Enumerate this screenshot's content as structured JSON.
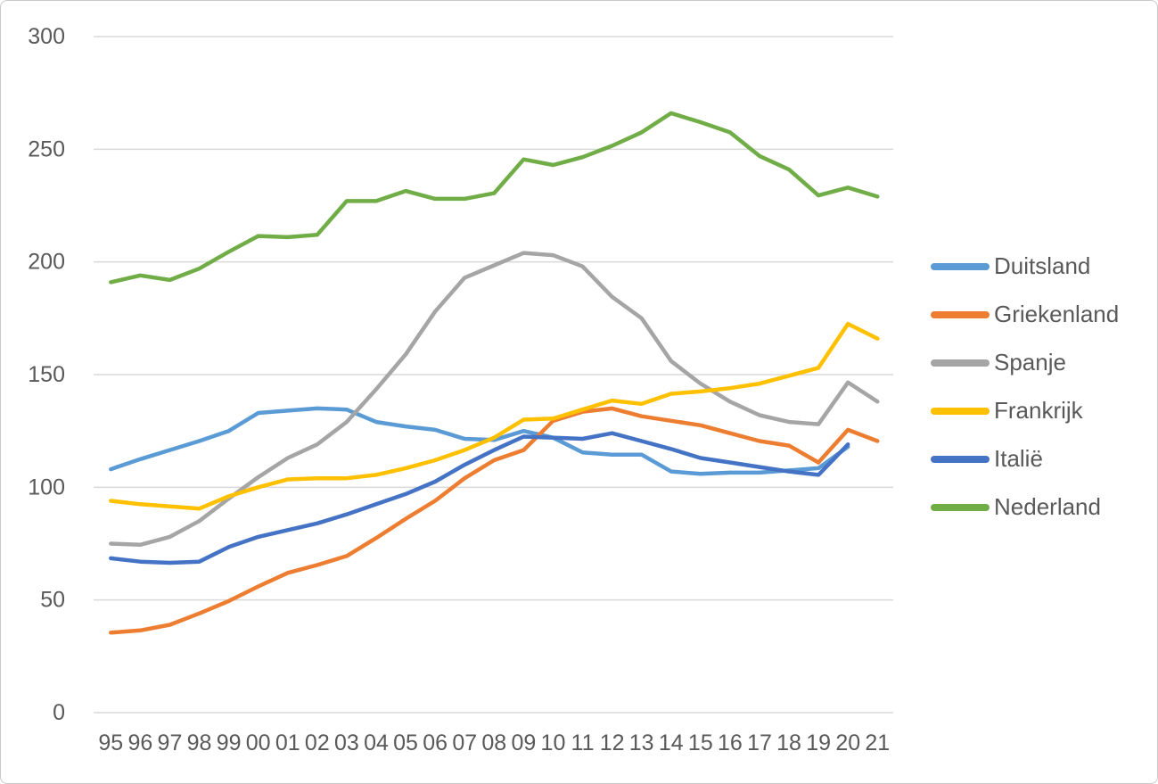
{
  "figure": {
    "background": "#ffffff",
    "border_color": "#c9c9c9",
    "text_color": "#595959",
    "gridline_color": "#d9d9d9"
  },
  "legend": {
    "position": "right",
    "items": [
      {
        "label": "Duitsland",
        "color": "#5B9BD5"
      },
      {
        "label": "Griekenland",
        "color": "#ED7D31"
      },
      {
        "label": "Spanje",
        "color": "#A5A5A5"
      },
      {
        "label": "Frankrijk",
        "color": "#FFC000"
      },
      {
        "label": "Italië",
        "color": "#4472C4"
      },
      {
        "label": "Nederland",
        "color": "#70AD47"
      }
    ]
  },
  "chart_data": {
    "type": "line",
    "title": "",
    "xlabel": "",
    "ylabel": "",
    "grid": true,
    "legend_position": "right",
    "ylim": [
      0,
      300
    ],
    "y_ticks": [
      0,
      50,
      100,
      150,
      200,
      250,
      300
    ],
    "x_labels": [
      "95",
      "96",
      "97",
      "98",
      "99",
      "00",
      "01",
      "02",
      "03",
      "04",
      "05",
      "06",
      "07",
      "08",
      "09",
      "10",
      "11",
      "12",
      "13",
      "14",
      "15",
      "16",
      "17",
      "18",
      "19",
      "20",
      "21"
    ],
    "series": [
      {
        "name": "Duitsland",
        "color": "#5B9BD5",
        "values": [
          108,
          112.5,
          116.5,
          120.5,
          125,
          133,
          134,
          135,
          134.5,
          129,
          127,
          125.5,
          121.5,
          121,
          125,
          122,
          115.5,
          114.5,
          114.5,
          107,
          106,
          106.5,
          106.5,
          107.5,
          108.5,
          118,
          null
        ]
      },
      {
        "name": "Griekenland",
        "color": "#ED7D31",
        "values": [
          35.5,
          36.5,
          39,
          44,
          49.5,
          56,
          62,
          65.5,
          69.5,
          77.5,
          86,
          94,
          104,
          112,
          116.5,
          129.5,
          133.5,
          135,
          131.5,
          129.5,
          127.5,
          124,
          120.5,
          118.5,
          111,
          125.5,
          120.5
        ]
      },
      {
        "name": "Spanje",
        "color": "#A5A5A5",
        "values": [
          75,
          74.5,
          78,
          85,
          95,
          104.5,
          113,
          119,
          129,
          143.5,
          159,
          178,
          193,
          198.5,
          204,
          203,
          198,
          184.5,
          175,
          156,
          146,
          138,
          132,
          129,
          128,
          146.5,
          138
        ]
      },
      {
        "name": "Frankrijk",
        "color": "#FFC000",
        "values": [
          94,
          92.5,
          91.5,
          90.5,
          96,
          100,
          103.5,
          104,
          104,
          105.5,
          108.5,
          112,
          116.5,
          122,
          130,
          130.5,
          134.5,
          138.5,
          137,
          141.5,
          142.5,
          144,
          146,
          149.5,
          153,
          172.5,
          166
        ]
      },
      {
        "name": "Italië",
        "color": "#4472C4",
        "values": [
          68.5,
          67,
          66.5,
          67,
          73.5,
          78,
          81,
          84,
          88,
          92.5,
          97,
          102.5,
          110,
          116.5,
          122.5,
          122,
          121.5,
          124,
          120.5,
          117,
          113,
          111,
          109,
          107,
          105.5,
          119,
          null
        ]
      },
      {
        "name": "Nederland",
        "color": "#70AD47",
        "values": [
          191,
          194,
          192,
          197,
          204.5,
          211.5,
          211,
          212,
          227,
          227,
          231.5,
          228,
          228,
          230.5,
          245.5,
          243,
          246.5,
          251.5,
          257.5,
          266,
          262,
          257.5,
          247,
          241,
          229.5,
          233,
          229
        ]
      }
    ]
  }
}
